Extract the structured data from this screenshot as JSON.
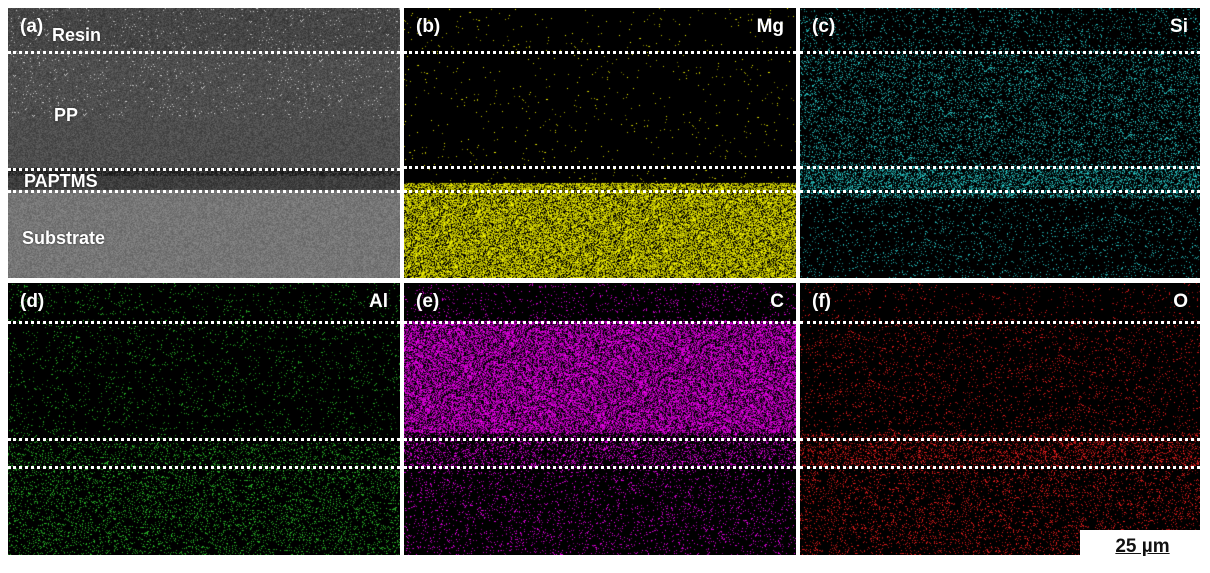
{
  "panels": [
    {
      "letter": "(a)",
      "element": "",
      "type": "sem",
      "layers": {
        "resin": "Resin",
        "pp": "PP",
        "paptms": "PAPTMS",
        "substrate": "Substrate"
      }
    },
    {
      "letter": "(b)",
      "element": "Mg",
      "color": "#ffff00"
    },
    {
      "letter": "(c)",
      "element": "Si",
      "color": "#2ad4d4"
    },
    {
      "letter": "(d)",
      "element": "Al",
      "color": "#2ecc2e"
    },
    {
      "letter": "(e)",
      "element": "C",
      "color": "#ff00ff"
    },
    {
      "letter": "(f)",
      "element": "O",
      "color": "#ff2020"
    }
  ],
  "scale_bar": {
    "label": "25 µm"
  }
}
